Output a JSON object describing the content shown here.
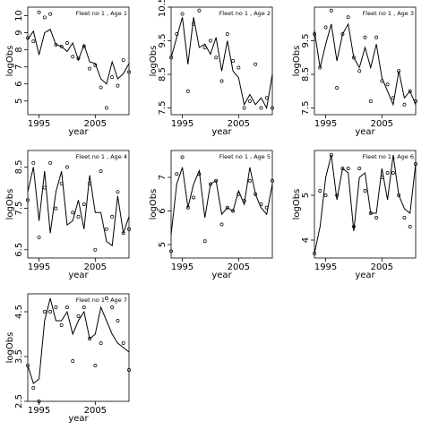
{
  "figure": {
    "background": "#ffffff",
    "line_color": "#000000",
    "point_color": "#000000"
  },
  "chart_data": [
    {
      "type": "line",
      "title": "Fleet no 1 , Age 1",
      "xlabel": "year",
      "ylabel": "logObs",
      "xlim": [
        1993,
        2011
      ],
      "ylim": [
        4.2,
        10.5
      ],
      "xticks": [
        1995,
        2005
      ],
      "yticks": [
        5,
        6,
        7,
        8,
        9,
        10
      ],
      "series": [
        {
          "type": "line",
          "x": [
            1993,
            1994,
            1995,
            1996,
            1997,
            1998,
            1999,
            2000,
            2001,
            2002,
            2003,
            2004,
            2005,
            2006,
            2007,
            2008,
            2009,
            2010,
            2011
          ],
          "values": [
            8.6,
            9.1,
            7.7,
            9.0,
            9.2,
            8.3,
            8.2,
            7.9,
            8.4,
            7.4,
            8.3,
            7.3,
            7.2,
            6.3,
            6.0,
            7.3,
            6.3,
            6.6,
            7.2
          ]
        },
        {
          "type": "scatter",
          "x": [
            1993,
            1994,
            1995,
            1996,
            1997,
            1998,
            1999,
            2000,
            2001,
            2002,
            2003,
            2004,
            2005,
            2006,
            2007,
            2008,
            2009,
            2010,
            2011
          ],
          "values": [
            8.7,
            8.5,
            10.2,
            9.9,
            10.1,
            8.3,
            8.2,
            8.4,
            7.6,
            7.5,
            8.2,
            6.9,
            7.1,
            5.8,
            4.6,
            6.4,
            5.9,
            7.4,
            6.7
          ]
        }
      ]
    },
    {
      "type": "line",
      "title": "Fleet no 1 , Age 2",
      "xlabel": "year",
      "ylabel": "logObs",
      "xlim": [
        1993,
        2011
      ],
      "ylim": [
        7.3,
        10.5
      ],
      "xticks": [
        1995,
        2005
      ],
      "yticks": [
        7.5,
        8.5,
        9.5,
        10.5
      ],
      "series": [
        {
          "type": "line",
          "x": [
            1993,
            1994,
            1995,
            1996,
            1997,
            1998,
            1999,
            2000,
            2001,
            2002,
            2003,
            2004,
            2005,
            2006,
            2007,
            2008,
            2009,
            2010,
            2011
          ],
          "values": [
            9.0,
            9.6,
            10.2,
            8.8,
            10.2,
            9.3,
            9.4,
            9.1,
            9.6,
            8.6,
            9.5,
            8.6,
            8.4,
            7.6,
            7.9,
            7.6,
            7.8,
            7.5,
            8.5
          ]
        },
        {
          "type": "scatter",
          "x": [
            1993,
            1994,
            1995,
            1996,
            1997,
            1998,
            1999,
            2000,
            2001,
            2002,
            2003,
            2004,
            2005,
            2006,
            2007,
            2008,
            2009,
            2010,
            2011
          ],
          "values": [
            9.0,
            9.7,
            10.3,
            8.0,
            10.0,
            10.4,
            9.3,
            9.5,
            9.0,
            8.3,
            9.7,
            8.9,
            8.7,
            7.5,
            7.7,
            8.8,
            7.5,
            7.8,
            7.5
          ]
        }
      ]
    },
    {
      "type": "line",
      "title": "Fleet no 1 , Age 3",
      "xlabel": "year",
      "ylabel": "logObs",
      "xlim": [
        1993,
        2011
      ],
      "ylim": [
        7.3,
        10.5
      ],
      "xticks": [
        1995,
        2005
      ],
      "yticks": [
        7.5,
        8.5,
        9.5
      ],
      "series": [
        {
          "type": "line",
          "x": [
            1993,
            1994,
            1995,
            1996,
            1997,
            1998,
            1999,
            2000,
            2001,
            2002,
            2003,
            2004,
            2005,
            2006,
            2007,
            2008,
            2009,
            2010,
            2011
          ],
          "values": [
            9.8,
            8.7,
            9.4,
            10.0,
            8.9,
            9.7,
            10.0,
            9.0,
            8.7,
            9.3,
            8.7,
            9.4,
            8.4,
            8.0,
            7.6,
            8.6,
            7.8,
            8.0,
            7.6
          ]
        },
        {
          "type": "scatter",
          "x": [
            1993,
            1994,
            1995,
            1996,
            1997,
            1998,
            1999,
            2000,
            2001,
            2002,
            2003,
            2004,
            2005,
            2006,
            2007,
            2008,
            2009,
            2010,
            2011
          ],
          "values": [
            9.7,
            8.7,
            9.9,
            10.4,
            8.1,
            9.7,
            10.2,
            9.0,
            8.6,
            9.6,
            7.7,
            9.6,
            8.3,
            8.2,
            7.8,
            8.6,
            7.6,
            8.0,
            7.7
          ]
        }
      ]
    },
    {
      "type": "line",
      "title": "Fleet no 1 , Age 4",
      "xlabel": "year",
      "ylabel": "logObs",
      "xlim": [
        1993,
        2011
      ],
      "ylim": [
        6.3,
        8.9
      ],
      "xticks": [
        1995,
        2005
      ],
      "yticks": [
        6.5,
        7.5,
        8.5
      ],
      "series": [
        {
          "type": "line",
          "x": [
            1993,
            1994,
            1995,
            1996,
            1997,
            1998,
            1999,
            2000,
            2001,
            2002,
            2003,
            2004,
            2005,
            2006,
            2007,
            2008,
            2009,
            2010,
            2011
          ],
          "values": [
            7.9,
            8.5,
            7.2,
            8.4,
            6.9,
            7.9,
            8.4,
            7.1,
            7.2,
            7.7,
            7.0,
            8.3,
            7.4,
            7.4,
            6.7,
            6.6,
            7.8,
            6.9,
            7.3
          ]
        },
        {
          "type": "scatter",
          "x": [
            1993,
            1994,
            1995,
            1996,
            1997,
            1998,
            1999,
            2000,
            2001,
            2002,
            2003,
            2004,
            2005,
            2006,
            2007,
            2008,
            2009,
            2010,
            2011
          ],
          "values": [
            7.7,
            8.6,
            6.8,
            8.0,
            8.6,
            7.5,
            8.1,
            8.5,
            7.4,
            7.3,
            7.6,
            8.1,
            6.5,
            8.4,
            7.0,
            7.3,
            7.9,
            6.9,
            7.0
          ]
        }
      ]
    },
    {
      "type": "line",
      "title": "Fleet no 1 , Age 5",
      "xlabel": "year",
      "ylabel": "logObs",
      "xlim": [
        1993,
        2011
      ],
      "ylim": [
        4.6,
        7.8
      ],
      "xticks": [
        1995,
        2005
      ],
      "yticks": [
        5.0,
        6.0,
        7.0
      ],
      "series": [
        {
          "type": "line",
          "x": [
            1993,
            1994,
            1995,
            1996,
            1997,
            1998,
            1999,
            2000,
            2001,
            2002,
            2003,
            2004,
            2005,
            2006,
            2007,
            2008,
            2009,
            2010,
            2011
          ],
          "values": [
            5.3,
            6.8,
            7.3,
            6.1,
            6.8,
            7.2,
            5.8,
            6.8,
            6.9,
            5.9,
            6.1,
            6.0,
            6.6,
            6.2,
            7.3,
            6.5,
            6.1,
            5.9,
            6.8
          ]
        },
        {
          "type": "scatter",
          "x": [
            1993,
            1994,
            1995,
            1996,
            1997,
            1998,
            1999,
            2000,
            2001,
            2002,
            2003,
            2004,
            2005,
            2006,
            2007,
            2008,
            2009,
            2010,
            2011
          ],
          "values": [
            4.8,
            7.1,
            7.6,
            6.1,
            6.4,
            7.1,
            5.1,
            6.8,
            6.9,
            5.6,
            6.1,
            6.0,
            6.5,
            6.3,
            6.9,
            6.5,
            6.2,
            6.1,
            6.9
          ]
        }
      ]
    },
    {
      "type": "line",
      "title": "Fleet no 1 , Age 6",
      "xlabel": "year",
      "ylabel": "logObs",
      "xlim": [
        1993,
        2011
      ],
      "ylim": [
        3.6,
        6.0
      ],
      "xticks": [
        1995,
        2005
      ],
      "yticks": [
        4.0,
        5.0
      ],
      "series": [
        {
          "type": "line",
          "x": [
            1993,
            1994,
            1995,
            1996,
            1997,
            1998,
            1999,
            2000,
            2001,
            2002,
            2003,
            2004,
            2005,
            2006,
            2007,
            2008,
            2009,
            2010,
            2011
          ],
          "values": [
            3.7,
            4.3,
            5.4,
            5.9,
            4.9,
            5.6,
            5.5,
            4.2,
            5.4,
            5.5,
            4.6,
            4.6,
            5.6,
            4.9,
            5.9,
            5.0,
            4.7,
            4.6,
            5.7
          ]
        },
        {
          "type": "scatter",
          "x": [
            1993,
            1994,
            1995,
            1996,
            1997,
            1998,
            1999,
            2000,
            2001,
            2002,
            2003,
            2004,
            2005,
            2006,
            2007,
            2008,
            2009,
            2010,
            2011
          ],
          "values": [
            3.7,
            5.1,
            5.0,
            5.9,
            5.0,
            5.6,
            5.6,
            4.3,
            5.6,
            5.1,
            4.6,
            4.5,
            5.4,
            5.5,
            5.5,
            5.0,
            4.5,
            4.3,
            5.7
          ]
        }
      ]
    },
    {
      "type": "line",
      "title": "Fleet no 1 , Age 7",
      "xlabel": "year",
      "ylabel": "logObs",
      "xlim": [
        1993,
        2011
      ],
      "ylim": [
        2.5,
        4.9
      ],
      "xticks": [
        1995,
        2005
      ],
      "yticks": [
        2.5,
        3.5,
        4.5
      ],
      "series": [
        {
          "type": "line",
          "x": [
            1993,
            1994,
            1995,
            1996,
            1997,
            1998,
            1999,
            2000,
            2001,
            2002,
            2003,
            2004,
            2005,
            2006,
            2007,
            2008,
            2009,
            2010,
            2011
          ],
          "values": [
            3.3,
            2.9,
            3.0,
            4.3,
            4.8,
            4.3,
            4.3,
            4.5,
            4.0,
            4.3,
            4.5,
            3.9,
            4.0,
            4.6,
            4.3,
            4.0,
            3.8,
            3.7,
            3.6
          ]
        },
        {
          "type": "scatter",
          "x": [
            1993,
            1994,
            1995,
            1996,
            1997,
            1998,
            1999,
            2000,
            2001,
            2002,
            2003,
            2004,
            2005,
            2006,
            2007,
            2008,
            2009,
            2010,
            2011
          ],
          "values": [
            3.3,
            2.8,
            2.5,
            4.5,
            4.5,
            4.6,
            4.2,
            4.6,
            3.4,
            4.4,
            4.6,
            3.9,
            3.3,
            3.8,
            4.8,
            4.6,
            4.3,
            3.8,
            3.2
          ]
        }
      ]
    }
  ]
}
